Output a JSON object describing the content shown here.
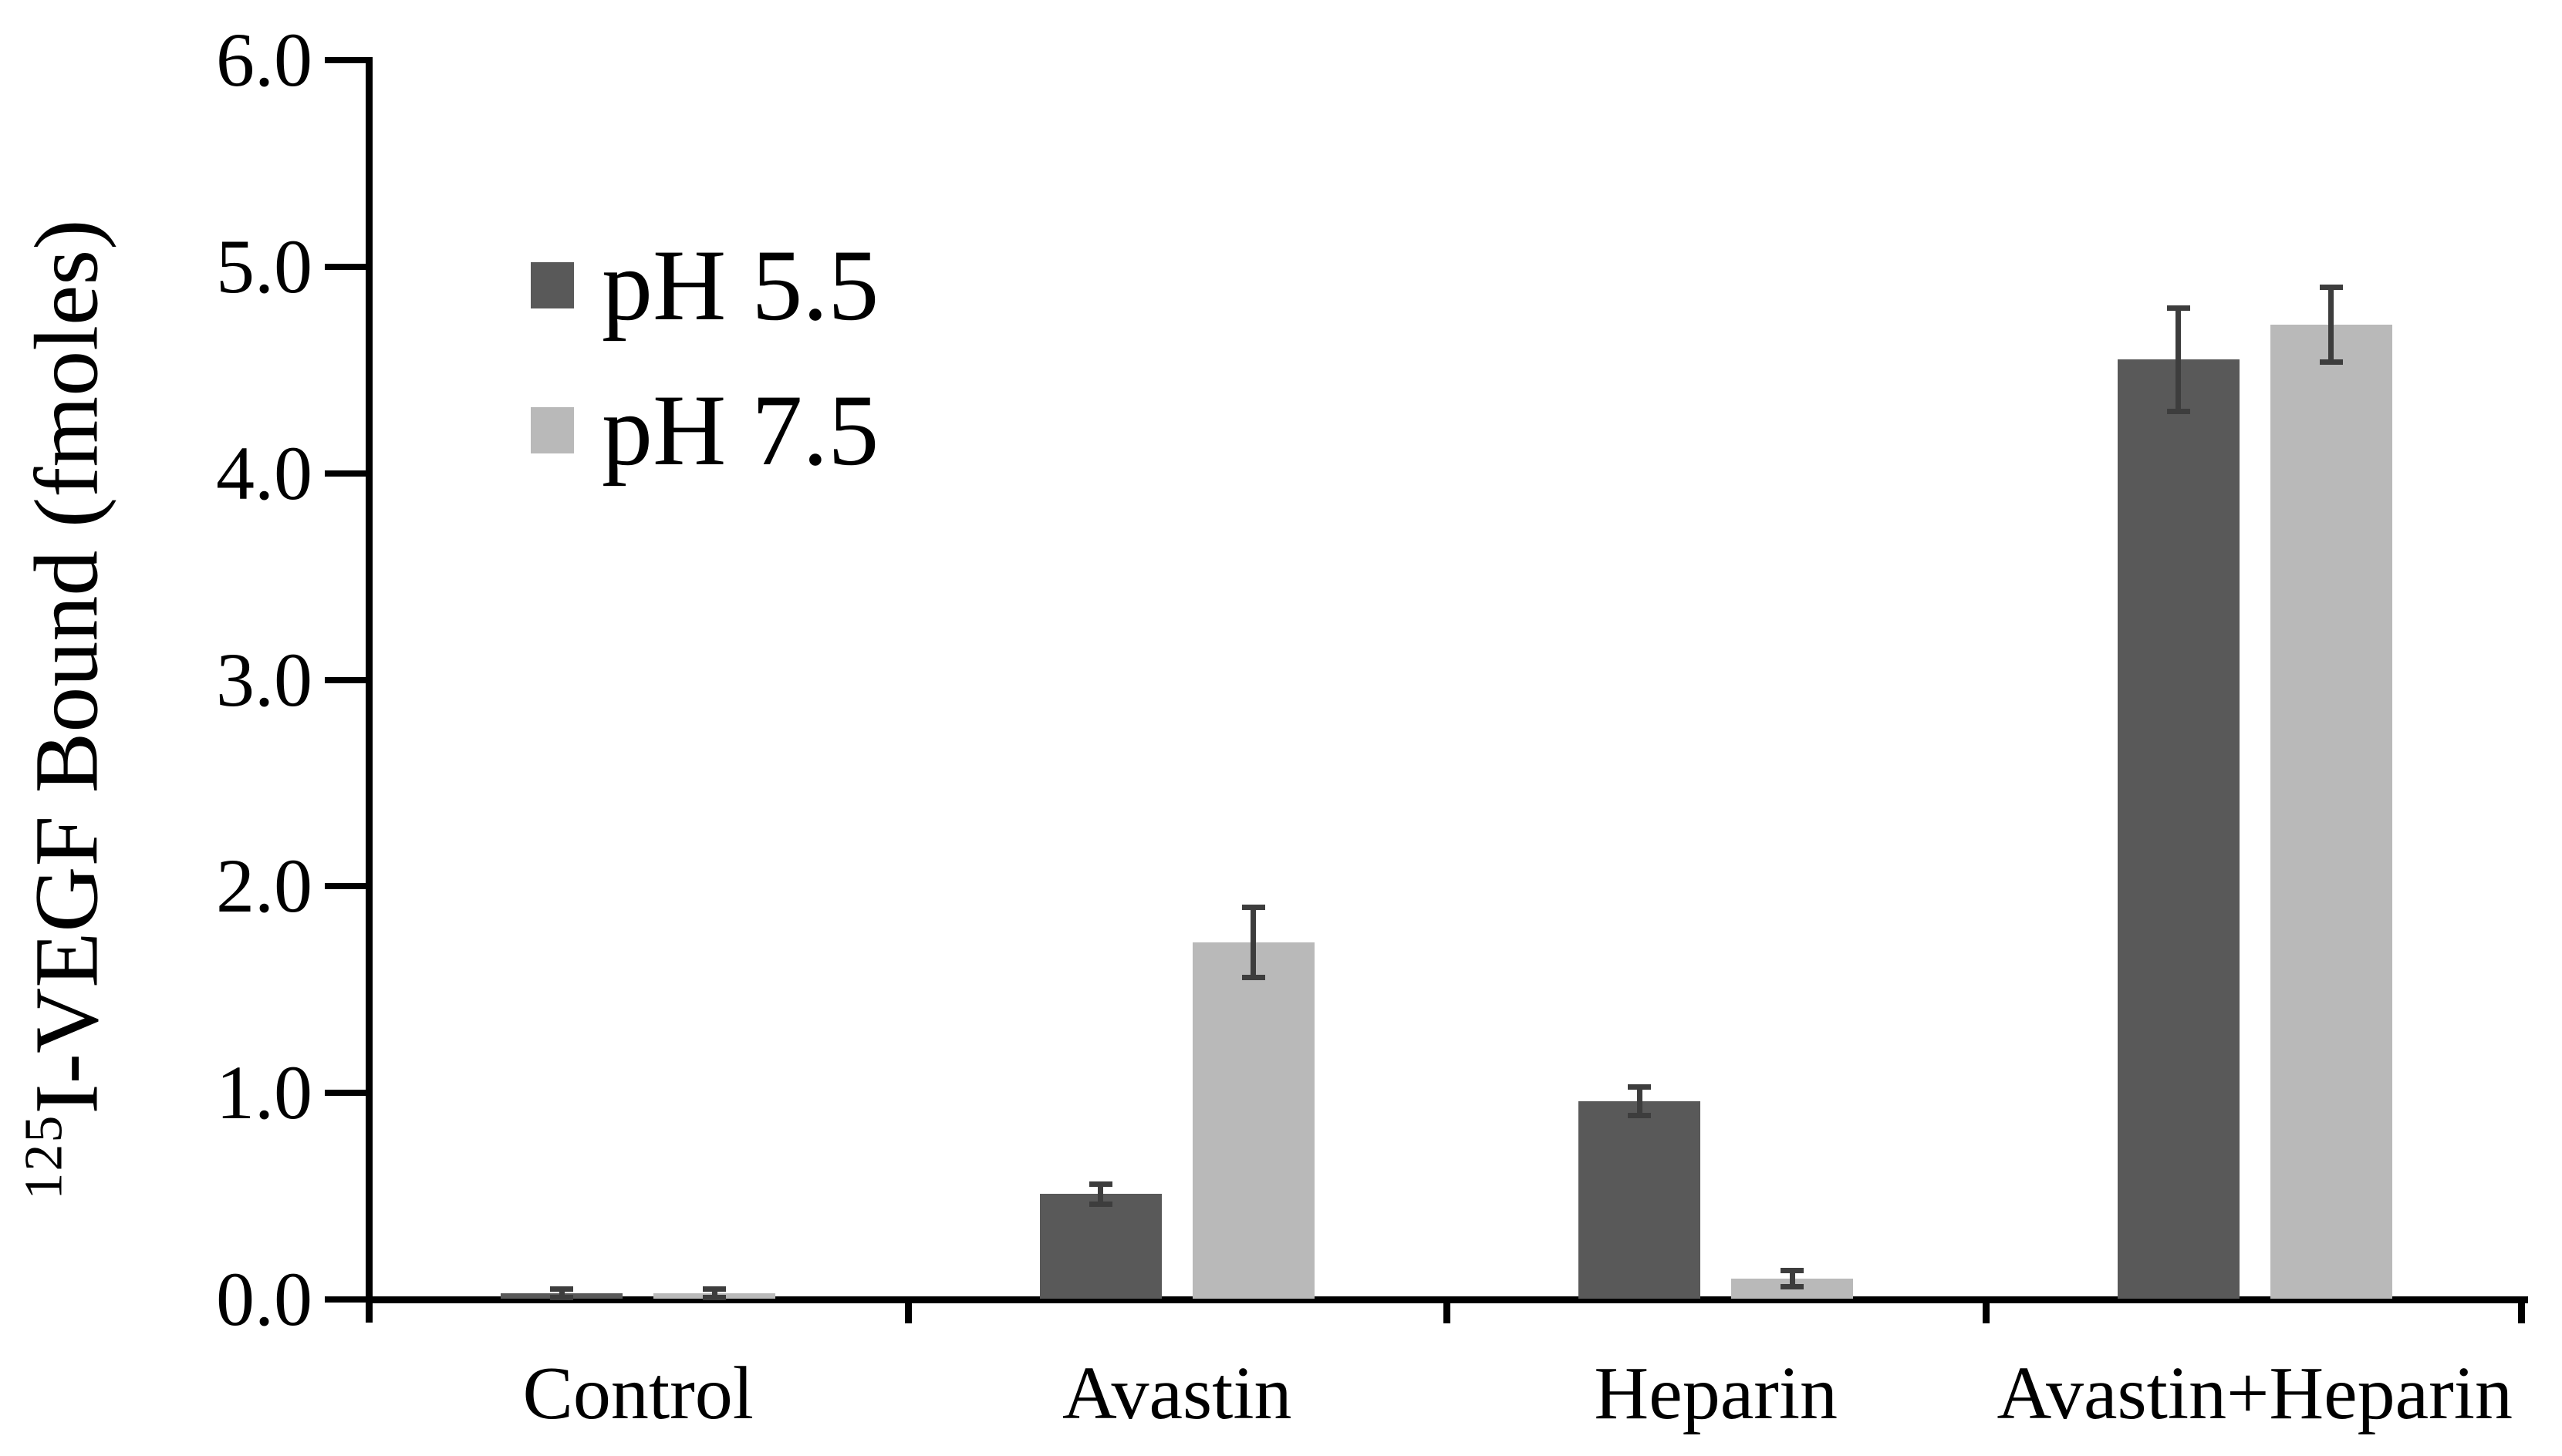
{
  "chart_data": {
    "type": "bar",
    "title": "",
    "categories": [
      "Control",
      "Avastin",
      "Heparin",
      "Avastin+Heparin"
    ],
    "series": [
      {
        "name": "pH 5.5",
        "color": "#595959",
        "values": [
          0.03,
          0.51,
          0.96,
          4.55
        ],
        "errors": [
          0.02,
          0.05,
          0.07,
          0.25
        ]
      },
      {
        "name": "pH 7.5",
        "color": "#b9b9b9",
        "values": [
          0.03,
          1.73,
          0.1,
          4.72
        ],
        "errors": [
          0.02,
          0.17,
          0.04,
          0.18
        ]
      }
    ],
    "ylabel": "125I-VEGF Bound (fmoles)",
    "ylabel_superscript": "125",
    "ylabel_main": "I-VEGF Bound (fmoles)",
    "xlabel": "",
    "yticks": [
      "0.0",
      "1.0",
      "2.0",
      "3.0",
      "4.0",
      "5.0",
      "6.0"
    ],
    "ylim": [
      0.0,
      6.0
    ],
    "grid": false,
    "legend_position": "upper-left-inside",
    "axis_color": "#000000",
    "error_bar_color": "#3d3d3d",
    "background_color": "#ffffff"
  }
}
